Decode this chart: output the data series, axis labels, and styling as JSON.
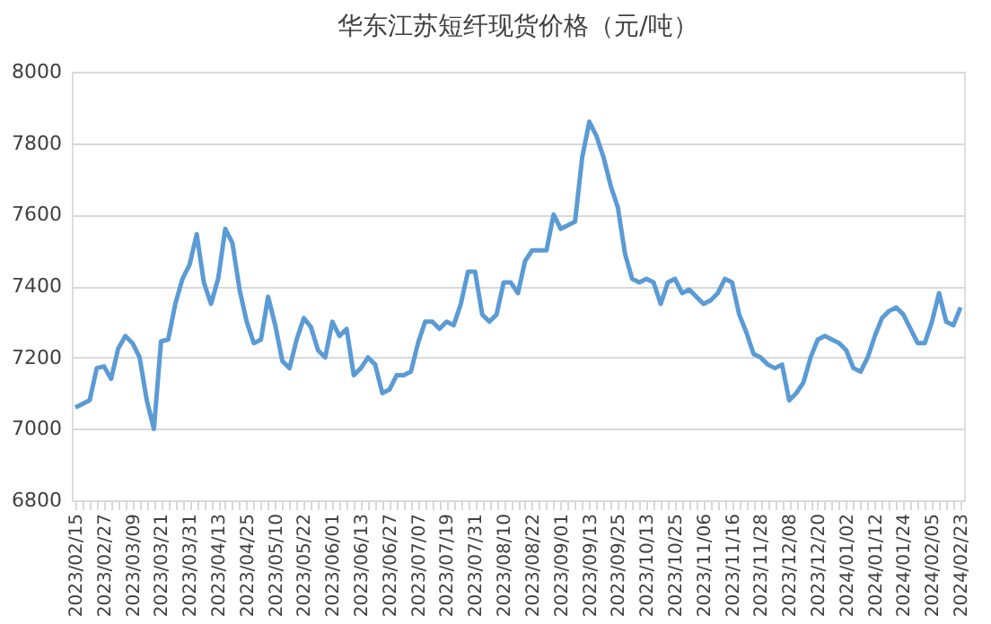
{
  "chart_data": {
    "type": "line",
    "title": "华东江苏短纤现货价格（元/吨）",
    "categories": [
      "2023/02/15",
      null,
      null,
      null,
      "2023/02/27",
      null,
      null,
      null,
      "2023/03/09",
      null,
      null,
      null,
      "2023/03/21",
      null,
      null,
      null,
      "2023/03/31",
      null,
      null,
      null,
      "2023/04/13",
      null,
      null,
      null,
      "2023/04/25",
      null,
      null,
      null,
      "2023/05/10",
      null,
      null,
      null,
      "2023/05/22",
      null,
      null,
      null,
      "2023/06/01",
      null,
      null,
      null,
      "2023/06/13",
      null,
      null,
      null,
      "2023/06/27",
      null,
      null,
      null,
      "2023/07/07",
      null,
      null,
      null,
      "2023/07/19",
      null,
      null,
      null,
      "2023/07/31",
      null,
      null,
      null,
      "2023/08/10",
      null,
      null,
      null,
      "2023/08/22",
      null,
      null,
      null,
      "2023/09/01",
      null,
      null,
      null,
      "2023/09/13",
      null,
      null,
      null,
      "2023/09/25",
      null,
      null,
      null,
      "2023/10/13",
      null,
      null,
      null,
      "2023/10/25",
      null,
      null,
      null,
      "2023/11/06",
      null,
      null,
      null,
      "2023/11/16",
      null,
      null,
      null,
      "2023/11/28",
      null,
      null,
      null,
      "2023/12/08",
      null,
      null,
      null,
      "2023/12/20",
      null,
      null,
      null,
      "2024/01/02",
      null,
      null,
      null,
      "2024/01/12",
      null,
      null,
      null,
      "2024/01/24",
      null,
      null,
      null,
      "2024/02/05",
      null,
      null,
      null,
      "2024/02/23"
    ],
    "series": [
      {
        "color": "#5b9bd5",
        "values": [
          7060,
          7070,
          7080,
          7170,
          7175,
          7140,
          7225,
          7260,
          7240,
          7200,
          7080,
          7000,
          7245,
          7250,
          7350,
          7420,
          7460,
          7545,
          7410,
          7350,
          7420,
          7560,
          7520,
          7390,
          7300,
          7240,
          7250,
          7370,
          7290,
          7190,
          7170,
          7250,
          7310,
          7285,
          7220,
          7200,
          7300,
          7260,
          7280,
          7150,
          7170,
          7200,
          7180,
          7100,
          7110,
          7150,
          7150,
          7160,
          7240,
          7300,
          7300,
          7280,
          7300,
          7290,
          7350,
          7440,
          7440,
          7320,
          7300,
          7320,
          7410,
          7410,
          7380,
          7470,
          7500,
          7500,
          7500,
          7600,
          7560,
          7570,
          7580,
          7760,
          7860,
          7820,
          7760,
          7680,
          7620,
          7490,
          7420,
          7410,
          7420,
          7410,
          7350,
          7410,
          7420,
          7380,
          7390,
          7370,
          7350,
          7360,
          7380,
          7420,
          7410,
          7320,
          7270,
          7210,
          7200,
          7180,
          7170,
          7180,
          7080,
          7100,
          7130,
          7200,
          7250,
          7260,
          7250,
          7240,
          7220,
          7170,
          7160,
          7200,
          7260,
          7310,
          7330,
          7340,
          7320,
          7280,
          7240,
          7240,
          7300,
          7380,
          7300,
          7290,
          7340
        ]
      }
    ],
    "ylim": [
      6800,
      8000
    ],
    "yticks": [
      6800,
      7000,
      7200,
      7400,
      7600,
      7800,
      8000
    ],
    "grid": "y",
    "marker": "none",
    "line_style": "solid"
  }
}
